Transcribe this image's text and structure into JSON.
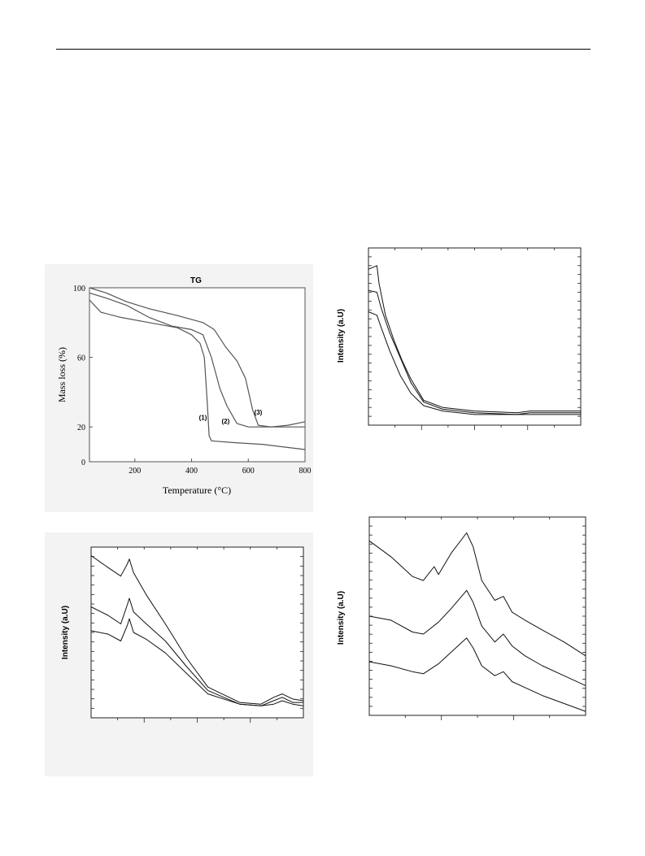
{
  "chart_data": [
    {
      "type": "line",
      "title": "TG",
      "xlabel": "Temperature (°C)",
      "ylabel": "Mass loss (%)",
      "xlim": [
        40,
        800
      ],
      "ylim": [
        0,
        100
      ],
      "xticks": [
        "200",
        "400",
        "600",
        "800"
      ],
      "yticks": [
        "0",
        "20",
        "60",
        "100"
      ],
      "series": [
        {
          "name": "(1)",
          "points": [
            [
              40,
              93
            ],
            [
              80,
              86
            ],
            [
              150,
              83
            ],
            [
              250,
              80
            ],
            [
              350,
              77
            ],
            [
              400,
              73
            ],
            [
              430,
              68
            ],
            [
              445,
              60
            ],
            [
              455,
              35
            ],
            [
              462,
              15
            ],
            [
              470,
              12
            ],
            [
              550,
              11
            ],
            [
              650,
              10
            ],
            [
              800,
              7
            ]
          ]
        },
        {
          "name": "(2)",
          "points": [
            [
              40,
              97
            ],
            [
              100,
              94
            ],
            [
              170,
              90
            ],
            [
              250,
              83
            ],
            [
              330,
              78
            ],
            [
              400,
              76
            ],
            [
              440,
              73
            ],
            [
              470,
              60
            ],
            [
              500,
              42
            ],
            [
              525,
              32
            ],
            [
              560,
              22
            ],
            [
              600,
              20
            ],
            [
              700,
              20
            ],
            [
              800,
              20
            ]
          ]
        },
        {
          "name": "(3)",
          "points": [
            [
              40,
              100
            ],
            [
              100,
              97
            ],
            [
              170,
              92
            ],
            [
              250,
              88
            ],
            [
              350,
              84
            ],
            [
              440,
              80
            ],
            [
              480,
              76
            ],
            [
              520,
              66
            ],
            [
              560,
              58
            ],
            [
              590,
              48
            ],
            [
              615,
              30
            ],
            [
              635,
              21
            ],
            [
              680,
              20
            ],
            [
              740,
              21
            ],
            [
              800,
              23
            ]
          ]
        }
      ]
    },
    {
      "type": "line",
      "xlabel": "",
      "ylabel": "Intensity (a.U)",
      "xlim": [
        0,
        100
      ],
      "ylim": [
        0,
        100
      ],
      "series": [
        {
          "points": [
            [
              0,
              88
            ],
            [
              4,
              90
            ],
            [
              5,
              80
            ],
            [
              8,
              62
            ],
            [
              12,
              48
            ],
            [
              16,
              36
            ],
            [
              20,
              26
            ],
            [
              26,
              14
            ],
            [
              35,
              10
            ],
            [
              50,
              8
            ],
            [
              70,
              7
            ],
            [
              76,
              8
            ],
            [
              100,
              8
            ]
          ]
        },
        {
          "points": [
            [
              0,
              76
            ],
            [
              4,
              75
            ],
            [
              6,
              66
            ],
            [
              10,
              52
            ],
            [
              15,
              38
            ],
            [
              20,
              24
            ],
            [
              26,
              13
            ],
            [
              35,
              9
            ],
            [
              50,
              7
            ],
            [
              70,
              6
            ],
            [
              76,
              7
            ],
            [
              100,
              7
            ]
          ]
        },
        {
          "points": [
            [
              0,
              64
            ],
            [
              4,
              62
            ],
            [
              6,
              55
            ],
            [
              10,
              42
            ],
            [
              15,
              28
            ],
            [
              20,
              18
            ],
            [
              26,
              11
            ],
            [
              35,
              8
            ],
            [
              50,
              6
            ],
            [
              70,
              6
            ],
            [
              100,
              6
            ]
          ]
        }
      ]
    },
    {
      "type": "line",
      "xlabel": "",
      "ylabel": "Intensity (a.U)",
      "xlim": [
        0,
        100
      ],
      "ylim": [
        0,
        100
      ],
      "series": [
        {
          "points": [
            [
              0,
              95
            ],
            [
              8,
              88
            ],
            [
              14,
              83
            ],
            [
              17,
              90
            ],
            [
              18,
              93
            ],
            [
              20,
              85
            ],
            [
              26,
              72
            ],
            [
              35,
              55
            ],
            [
              45,
              35
            ],
            [
              55,
              18
            ],
            [
              70,
              9
            ],
            [
              80,
              8
            ],
            [
              86,
              12
            ],
            [
              90,
              14
            ],
            [
              95,
              11
            ],
            [
              100,
              10
            ]
          ]
        },
        {
          "points": [
            [
              0,
              65
            ],
            [
              8,
              60
            ],
            [
              14,
              55
            ],
            [
              17,
              66
            ],
            [
              18,
              70
            ],
            [
              20,
              62
            ],
            [
              26,
              55
            ],
            [
              35,
              45
            ],
            [
              45,
              30
            ],
            [
              55,
              16
            ],
            [
              70,
              8
            ],
            [
              80,
              7
            ],
            [
              86,
              10
            ],
            [
              90,
              12
            ],
            [
              95,
              9
            ],
            [
              100,
              9
            ]
          ]
        },
        {
          "points": [
            [
              0,
              51
            ],
            [
              8,
              49
            ],
            [
              14,
              45
            ],
            [
              17,
              54
            ],
            [
              18,
              58
            ],
            [
              20,
              50
            ],
            [
              26,
              46
            ],
            [
              35,
              38
            ],
            [
              45,
              26
            ],
            [
              55,
              14
            ],
            [
              70,
              8
            ],
            [
              80,
              7
            ],
            [
              86,
              8
            ],
            [
              90,
              10
            ],
            [
              95,
              8
            ],
            [
              100,
              7
            ]
          ]
        }
      ]
    },
    {
      "type": "line",
      "xlabel": "",
      "ylabel": "Intensity (a.U)",
      "xlim": [
        0,
        100
      ],
      "ylim": [
        0,
        100
      ],
      "series": [
        {
          "points": [
            [
              0,
              88
            ],
            [
              10,
              80
            ],
            [
              20,
              70
            ],
            [
              25,
              68
            ],
            [
              30,
              75
            ],
            [
              32,
              71
            ],
            [
              38,
              82
            ],
            [
              45,
              92
            ],
            [
              48,
              85
            ],
            [
              52,
              68
            ],
            [
              58,
              58
            ],
            [
              62,
              60
            ],
            [
              66,
              52
            ],
            [
              72,
              48
            ],
            [
              80,
              43
            ],
            [
              90,
              37
            ],
            [
              100,
              30
            ]
          ]
        },
        {
          "points": [
            [
              0,
              50
            ],
            [
              10,
              48
            ],
            [
              20,
              42
            ],
            [
              25,
              41
            ],
            [
              32,
              47
            ],
            [
              38,
              54
            ],
            [
              45,
              63
            ],
            [
              48,
              57
            ],
            [
              52,
              45
            ],
            [
              58,
              37
            ],
            [
              62,
              41
            ],
            [
              66,
              35
            ],
            [
              72,
              30
            ],
            [
              80,
              25
            ],
            [
              90,
              20
            ],
            [
              100,
              15
            ]
          ]
        },
        {
          "points": [
            [
              0,
              27
            ],
            [
              10,
              25
            ],
            [
              20,
              22
            ],
            [
              25,
              21
            ],
            [
              32,
              26
            ],
            [
              38,
              32
            ],
            [
              45,
              39
            ],
            [
              48,
              34
            ],
            [
              52,
              25
            ],
            [
              58,
              20
            ],
            [
              62,
              22
            ],
            [
              66,
              17
            ],
            [
              72,
              14
            ],
            [
              80,
              10
            ],
            [
              90,
              6
            ],
            [
              100,
              2
            ]
          ]
        }
      ]
    }
  ]
}
